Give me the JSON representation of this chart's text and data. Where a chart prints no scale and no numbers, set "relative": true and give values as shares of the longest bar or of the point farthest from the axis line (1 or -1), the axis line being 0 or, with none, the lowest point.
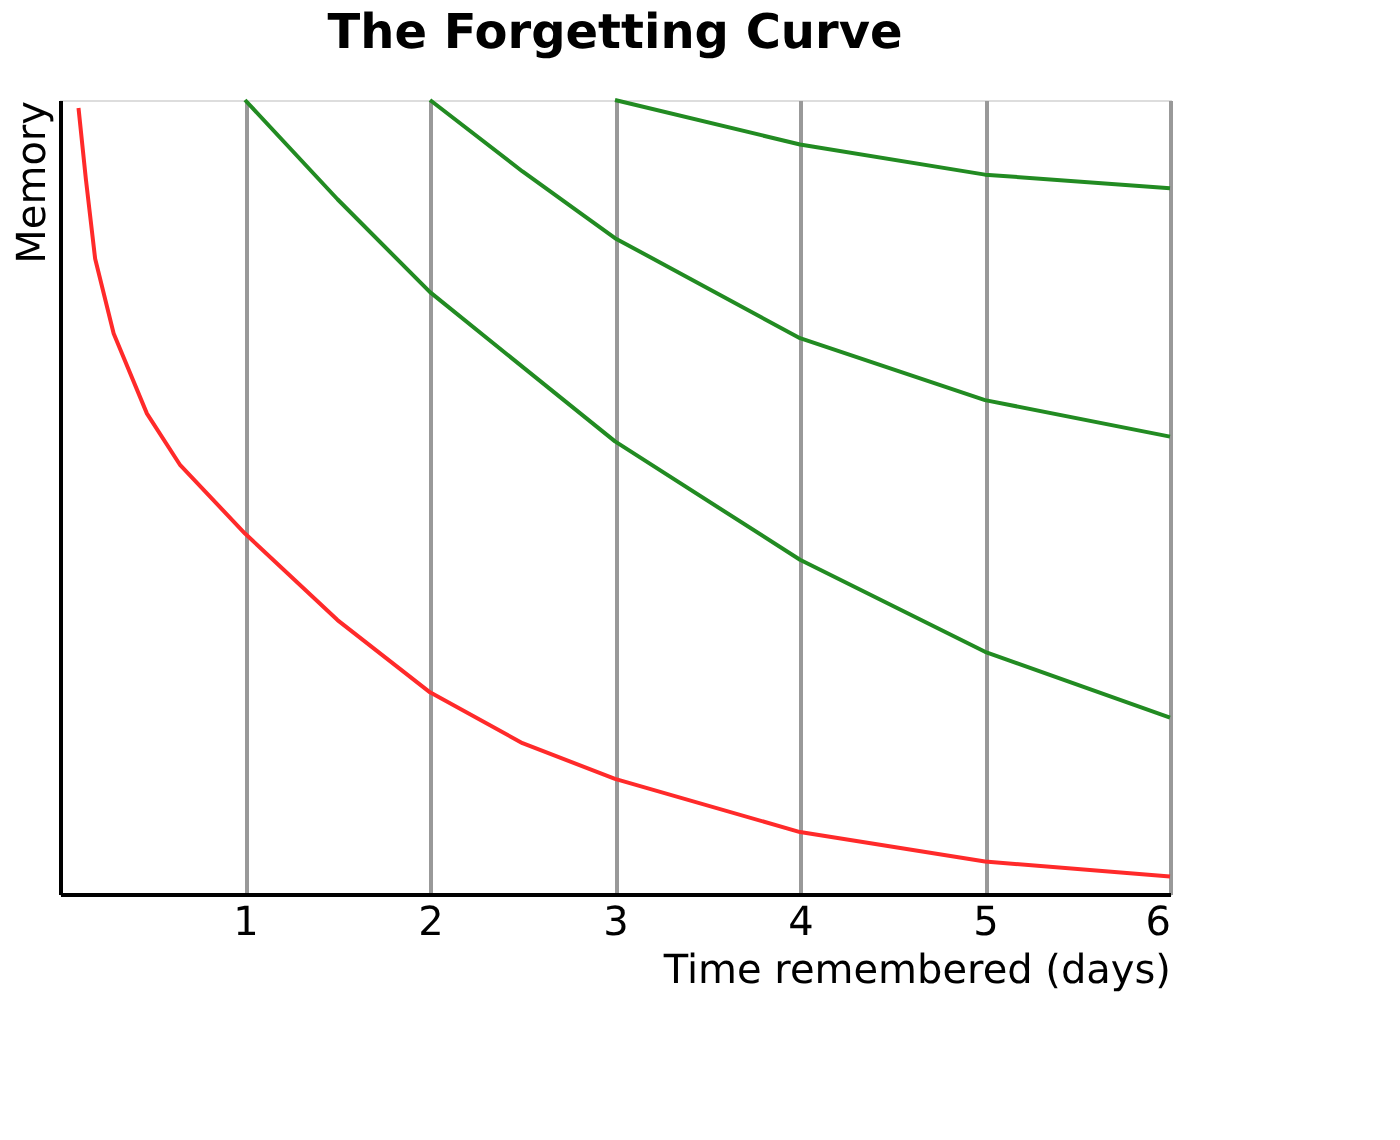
{
  "chart_data": {
    "type": "line",
    "title": "The Forgetting Curve",
    "xlabel": "Time remembered (days)",
    "ylabel": "Memory",
    "relative": true,
    "xlim": [
      0,
      6
    ],
    "xticks": [
      1,
      2,
      3,
      4,
      5,
      6
    ],
    "grid": "x",
    "legend": false,
    "marker": "none",
    "line_style": "solid",
    "series": [
      {
        "color": "#ff2a2a",
        "x": [
          0.1,
          0.14,
          0.19,
          0.29,
          0.47,
          0.65,
          1,
          1.5,
          2,
          2.5,
          3,
          4,
          5,
          6
        ],
        "values": [
          0.99,
          0.9,
          0.8,
          0.706,
          0.605,
          0.54,
          0.454,
          0.345,
          0.254,
          0.19,
          0.145,
          0.078,
          0.041,
          0.022
        ]
      },
      {
        "color": "#228b22",
        "x": [
          1,
          1.5,
          2,
          3,
          4,
          5,
          6
        ],
        "values": [
          1.0,
          0.875,
          0.758,
          0.57,
          0.421,
          0.305,
          0.222
        ]
      },
      {
        "color": "#228b22",
        "x": [
          2,
          2.5,
          3,
          4,
          5,
          6
        ],
        "values": [
          1.0,
          0.91,
          0.826,
          0.7,
          0.622,
          0.576
        ]
      },
      {
        "color": "#228b22",
        "x": [
          3,
          4,
          5,
          6
        ],
        "values": [
          1.0,
          0.944,
          0.906,
          0.889
        ]
      }
    ]
  }
}
